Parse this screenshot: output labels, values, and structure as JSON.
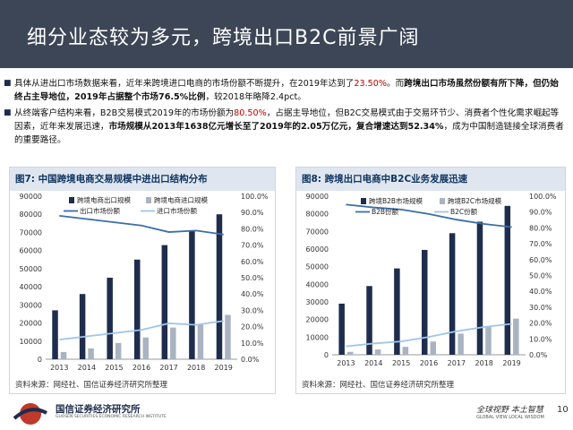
{
  "title": "细分业态较为多元，跨境出口B2C前景广阔",
  "bullets": [
    {
      "segments": [
        {
          "t": "具体从进出口市场数据来看，近年来跨境进口电商的市场份额不断提升，在2019年达到了",
          "s": "n"
        },
        {
          "t": "23.50%",
          "s": "r"
        },
        {
          "t": "。而",
          "s": "n"
        },
        {
          "t": "跨境出口市场虽然份额有所下降，但仍始终占主导地位，2019年占据整个市场76.5%比例",
          "s": "b"
        },
        {
          "t": "，较2018年略降2.4pct。",
          "s": "n"
        }
      ]
    },
    {
      "segments": [
        {
          "t": "从终端客户结构来看，B2B交易模式2019年的市场份额为",
          "s": "n"
        },
        {
          "t": "80.50%",
          "s": "r"
        },
        {
          "t": "，占据主导地位，但B2C交易模式由于交易环节少、消费者个性化需求崛起等因素，近年来发展迅速，",
          "s": "n"
        },
        {
          "t": "市场规模从2013年1638亿元增长至了2019年的2.05万亿元，复合增速达到52.34%",
          "s": "b"
        },
        {
          "t": "，成为中国制造链接全球消费者的重要路径。",
          "s": "n"
        }
      ]
    }
  ],
  "fig1": {
    "caption": "图7:  中国跨境电商交易规模中进出口结构分布",
    "source": "资料来源：网经社、国信证券经济研究所整理",
    "chart_data": {
      "type": "bar",
      "categories": [
        "2013",
        "2014",
        "2015",
        "2016",
        "2017",
        "2018",
        "2019"
      ],
      "series": [
        {
          "name": "跨境电商出口规模",
          "type": "bar",
          "axis": "left",
          "color": "#1f2d4d",
          "values": [
            27000,
            36000,
            45000,
            55000,
            63000,
            71000,
            80000
          ]
        },
        {
          "name": "跨境电商进口规模",
          "type": "bar",
          "axis": "left",
          "color": "#a9b3c1",
          "values": [
            4000,
            6000,
            9000,
            12000,
            17500,
            19000,
            24500
          ]
        },
        {
          "name": "出口市场份额",
          "type": "line",
          "axis": "right",
          "color": "#3b6ea8",
          "values": [
            88.0,
            86.0,
            84.0,
            82.0,
            78.0,
            78.9,
            76.5
          ]
        },
        {
          "name": "进口市场份额",
          "type": "line",
          "axis": "right",
          "color": "#9fc5e8",
          "values": [
            12.0,
            14.0,
            16.0,
            18.0,
            22.0,
            21.1,
            23.5
          ]
        }
      ],
      "ylim": [
        0,
        90000
      ],
      "yticks": [
        "0",
        "10000",
        "20000",
        "30000",
        "40000",
        "50000",
        "60000",
        "70000",
        "80000",
        "90000"
      ],
      "y2lim": [
        0,
        100
      ],
      "y2ticks": [
        "0.0%",
        "10.0%",
        "20.0%",
        "30.0%",
        "40.0%",
        "50.0%",
        "60.0%",
        "70.0%",
        "80.0%",
        "90.0%",
        "100.0%"
      ]
    }
  },
  "fig2": {
    "caption": "图8:  跨境出口电商中B2C业务发展迅速",
    "source": "资料来源：网经社、国信证券经济研究所整理",
    "chart_data": {
      "type": "bar",
      "categories": [
        "2013",
        "2014",
        "2015",
        "2016",
        "2017",
        "2018",
        "2019"
      ],
      "series": [
        {
          "name": "跨境B2B市场规模",
          "type": "bar",
          "axis": "left",
          "color": "#1f2d4d",
          "values": [
            29000,
            39000,
            49000,
            59500,
            69000,
            75500,
            84500
          ]
        },
        {
          "name": "跨境B2C市场规模",
          "type": "bar",
          "axis": "left",
          "color": "#a9b3c1",
          "values": [
            1638,
            3000,
            4500,
            7500,
            12000,
            16000,
            20500
          ]
        },
        {
          "name": "B2B份额",
          "type": "line",
          "axis": "right",
          "color": "#3b6ea8",
          "values": [
            94.7,
            92.9,
            91.6,
            88.8,
            85.2,
            82.5,
            80.5
          ]
        },
        {
          "name": "B2C份额",
          "type": "line",
          "axis": "right",
          "color": "#9fc5e8",
          "values": [
            5.3,
            7.1,
            8.4,
            11.2,
            14.8,
            17.5,
            19.5
          ]
        }
      ],
      "ylim": [
        0,
        90000
      ],
      "yticks": [
        "0",
        "10000",
        "20000",
        "30000",
        "40000",
        "50000",
        "60000",
        "70000",
        "80000",
        "90000"
      ],
      "y2lim": [
        0,
        100
      ],
      "y2ticks": [
        "0.0%",
        "10.0%",
        "20.0%",
        "30.0%",
        "40.0%",
        "50.0%",
        "60.0%",
        "70.0%",
        "80.0%",
        "90.0%",
        "100.0%"
      ]
    }
  },
  "footer": {
    "company": "国信证券经济研究所",
    "company_en": "GUOSEN SECURITIES ECONOMIC RESEARCH INSTITUTE",
    "slogan": "全球视野 本土智慧",
    "slogan_en": "GLOBAL VIEW     LOCAL WISDOM",
    "page": "10"
  },
  "colors": {
    "header_bg": "#3d4656",
    "accent_red": "#c00000",
    "caption_bg": "#dfe6ef"
  }
}
